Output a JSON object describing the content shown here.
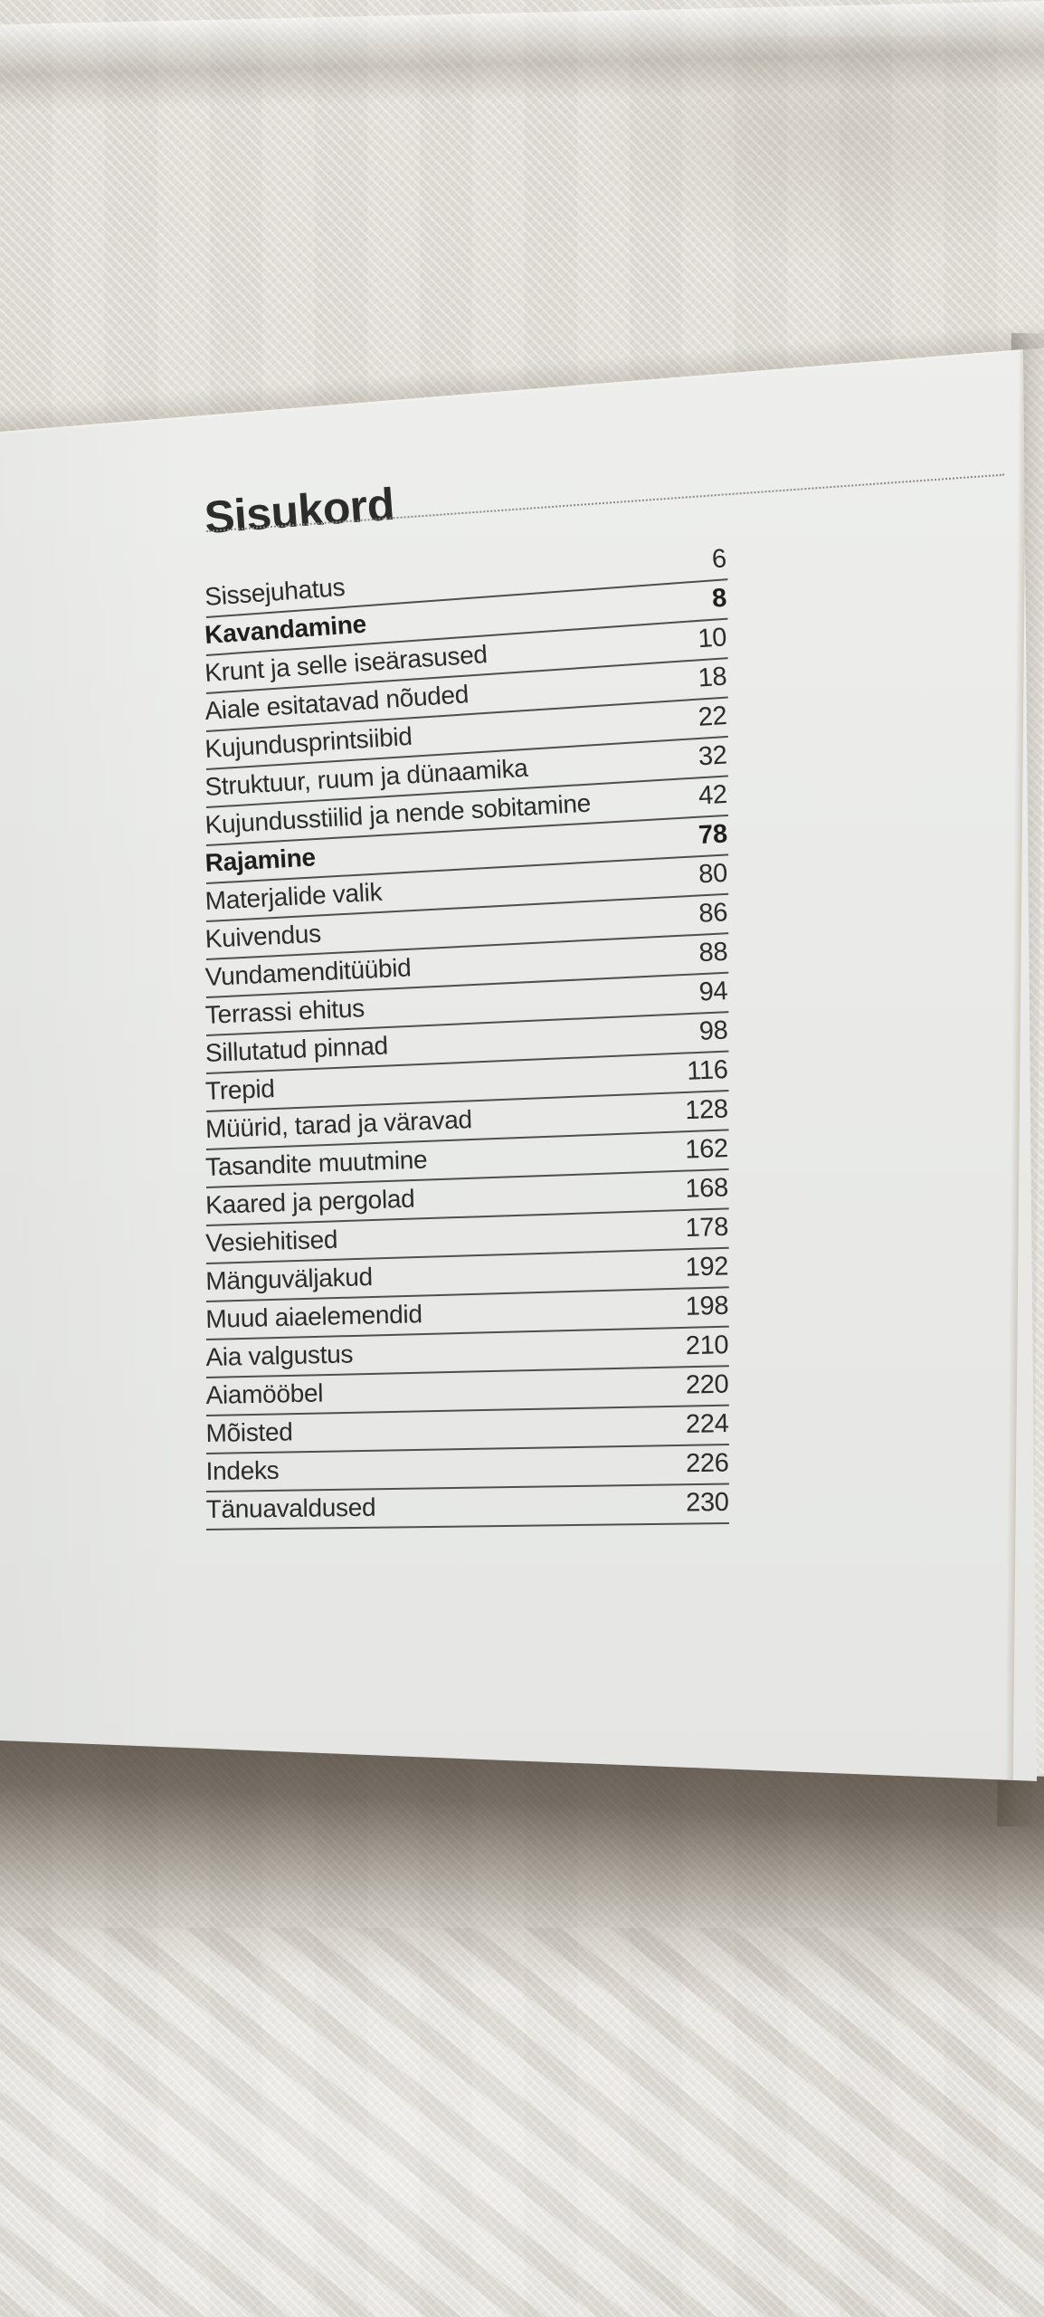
{
  "page_title": "Sisukord",
  "toc_entries": [
    {
      "label": "Sissejuhatus",
      "page": "6",
      "bold": false
    },
    {
      "label": "Kavandamine",
      "page": "8",
      "bold": true
    },
    {
      "label": "Krunt ja selle iseärasused",
      "page": "10",
      "bold": false
    },
    {
      "label": "Aiale esitatavad nõuded",
      "page": "18",
      "bold": false
    },
    {
      "label": "Kujundusprintsiibid",
      "page": "22",
      "bold": false
    },
    {
      "label": "Struktuur, ruum ja dünaamika",
      "page": "32",
      "bold": false
    },
    {
      "label": "Kujundusstiilid ja nende sobitamine",
      "page": "42",
      "bold": false
    },
    {
      "label": "Rajamine",
      "page": "78",
      "bold": true
    },
    {
      "label": "Materjalide valik",
      "page": "80",
      "bold": false
    },
    {
      "label": "Kuivendus",
      "page": "86",
      "bold": false
    },
    {
      "label": "Vundamenditüübid",
      "page": "88",
      "bold": false
    },
    {
      "label": "Terrassi ehitus",
      "page": "94",
      "bold": false
    },
    {
      "label": "Sillutatud pinnad",
      "page": "98",
      "bold": false
    },
    {
      "label": "Trepid",
      "page": "116",
      "bold": false
    },
    {
      "label": "Müürid, tarad ja väravad",
      "page": "128",
      "bold": false
    },
    {
      "label": "Tasandite muutmine",
      "page": "162",
      "bold": false
    },
    {
      "label": "Kaared ja pergolad",
      "page": "168",
      "bold": false
    },
    {
      "label": "Vesiehitised",
      "page": "178",
      "bold": false
    },
    {
      "label": "Mänguväljakud",
      "page": "192",
      "bold": false
    },
    {
      "label": "Muud aiaelemendid",
      "page": "198",
      "bold": false
    },
    {
      "label": "Aia valgustus",
      "page": "210",
      "bold": false
    },
    {
      "label": "Aiamööbel",
      "page": "220",
      "bold": false
    },
    {
      "label": "Mõisted",
      "page": "224",
      "bold": false
    },
    {
      "label": "Indeks",
      "page": "226",
      "bold": false
    },
    {
      "label": "Tänuavaldused",
      "page": "230",
      "bold": false
    }
  ],
  "colors": {
    "ink": "#2c2c2c",
    "paper": "#eaebe9",
    "fabric": "#e2dfd9",
    "shadow": "#6c645a",
    "rule-color": "#4e4e4c",
    "dot-color": "#8d8982"
  }
}
